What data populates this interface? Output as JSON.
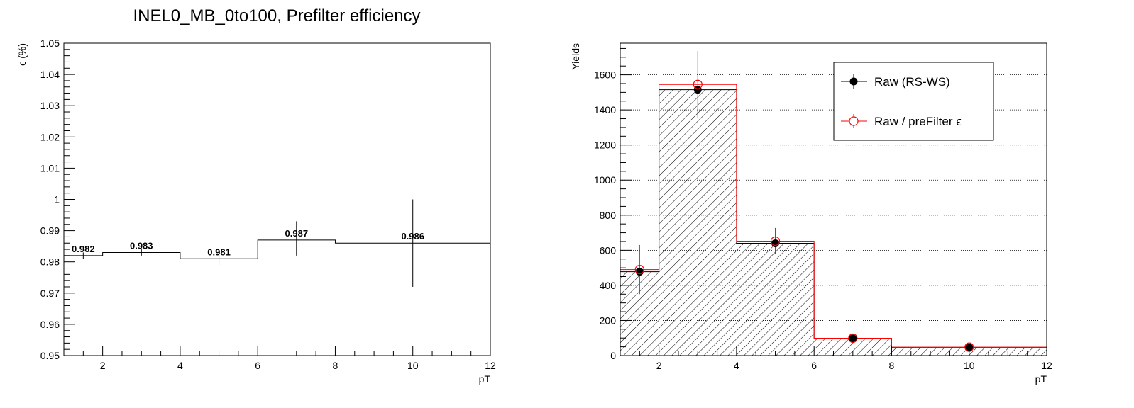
{
  "chart_data": [
    {
      "type": "step",
      "title": "INEL0_MB_0to100, Prefilter efficiency",
      "xlabel": "pT",
      "ylabel": "ϵ (%)",
      "xlim": [
        1,
        12
      ],
      "ylim": [
        0.95,
        1.05
      ],
      "xticks": [
        "2",
        "4",
        "6",
        "8",
        "10",
        "12"
      ],
      "yticks": [
        "0.95",
        "0.96",
        "0.97",
        "0.98",
        "0.99",
        "1",
        "1.01",
        "1.02",
        "1.03",
        "1.04",
        "1.05"
      ],
      "grid": false,
      "bins": [
        {
          "x0": 1,
          "x1": 2,
          "value": 0.982,
          "label": "0.982",
          "err_low": 0.981,
          "err_high": 0.983
        },
        {
          "x0": 2,
          "x1": 4,
          "value": 0.983,
          "label": "0.983",
          "err_low": 0.982,
          "err_high": 0.984
        },
        {
          "x0": 4,
          "x1": 6,
          "value": 0.981,
          "label": "0.981",
          "err_low": 0.979,
          "err_high": 0.983
        },
        {
          "x0": 6,
          "x1": 8,
          "value": 0.987,
          "label": "0.987",
          "err_low": 0.982,
          "err_high": 0.993
        },
        {
          "x0": 8,
          "x1": 12,
          "value": 0.986,
          "label": "0.986",
          "err_low": 0.972,
          "err_high": 1.0
        }
      ]
    },
    {
      "type": "histogram",
      "title": "",
      "xlabel": "pT",
      "ylabel": "Yields",
      "xlim": [
        1,
        12
      ],
      "ylim": [
        0,
        1780
      ],
      "xticks": [
        "2",
        "4",
        "6",
        "8",
        "10",
        "12"
      ],
      "yticks": [
        "0",
        "200",
        "400",
        "600",
        "800",
        "1000",
        "1200",
        "1400",
        "1600"
      ],
      "grid": true,
      "legend_position": "top-right",
      "bin_edges": [
        1,
        2,
        4,
        6,
        8,
        12
      ],
      "series": [
        {
          "name": "Raw (RS-WS)",
          "color": "#000000",
          "values": [
            478,
            1515,
            640,
            98,
            47
          ],
          "errors": [
            0,
            0,
            0,
            0,
            0
          ]
        },
        {
          "name": "Raw / preFilter ϵ",
          "color": "#ff0000",
          "values": [
            490,
            1545,
            652,
            99,
            48
          ],
          "errors": [
            140,
            190,
            75,
            12,
            8
          ]
        }
      ]
    }
  ]
}
